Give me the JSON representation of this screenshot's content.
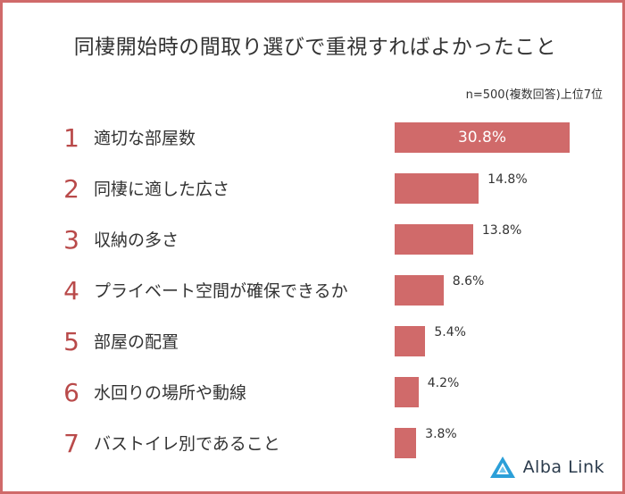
{
  "title": "同棲開始時の間取り選びで重視すればよかったこと",
  "note": "n=500(複数回答)上位7位",
  "logo": {
    "text": "Alba Link",
    "icon": "alba-link-triangle-icon",
    "color": "#2b9fd8"
  },
  "colors": {
    "accent": "#d06a6a",
    "rank": "#b94a4a",
    "frame": "#d06a6a"
  },
  "chart_data": {
    "type": "bar",
    "orientation": "horizontal",
    "ranks": [
      "1",
      "2",
      "3",
      "4",
      "5",
      "6",
      "7"
    ],
    "categories": [
      "適切な部屋数",
      "同棲に適した広さ",
      "収納の多さ",
      "プライベート空間が確保できるか",
      "部屋の配置",
      "水回りの場所や動線",
      "バストイレ別であること"
    ],
    "values": [
      30.8,
      14.8,
      13.8,
      8.6,
      5.4,
      4.2,
      3.8
    ],
    "labels": [
      "30.8%",
      "14.8%",
      "13.8%",
      "8.6%",
      "5.4%",
      "4.2%",
      "3.8%"
    ],
    "unit": "%",
    "xlim": [
      0,
      30.8
    ],
    "grid": false,
    "legend": "none"
  }
}
